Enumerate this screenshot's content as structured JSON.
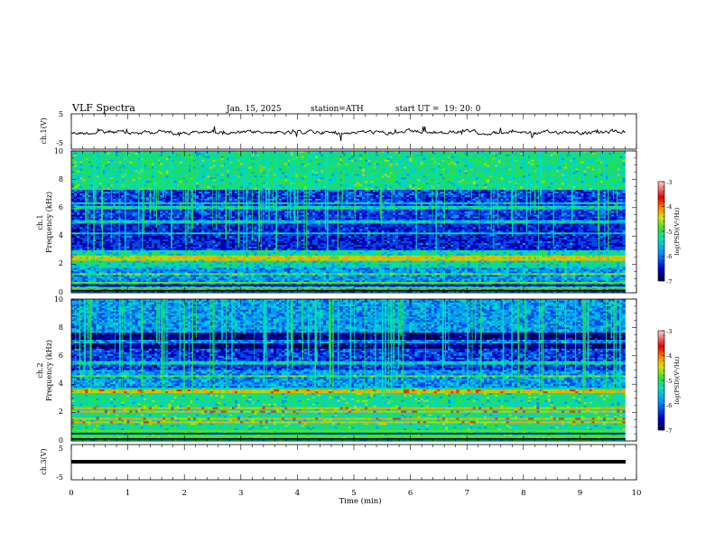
{
  "header": {
    "title": "VLF  Spectra",
    "date": "Jan. 15, 2025",
    "station": "station=ATH",
    "start_label": "start  UT  =",
    "start_value": "19: 20: 0"
  },
  "chart_data": [
    {
      "type": "line",
      "panel": "ch.1 waveform",
      "ylabel": "ch.1(V)",
      "ylim": [
        -5,
        5
      ],
      "y_ticks": [
        "5",
        "-5"
      ],
      "xlim": [
        0,
        10
      ],
      "description_level_volts": 0,
      "color": "#000000"
    },
    {
      "type": "heatmap",
      "panel": "ch.1 spectrogram",
      "ylabel_line1": "ch.1",
      "ylabel_line2": "Frequency  (kHz)",
      "ylim": [
        0,
        10
      ],
      "y_ticks": [
        "10",
        "8",
        "6",
        "4",
        "2",
        "0"
      ],
      "xlim": [
        0,
        9.8
      ],
      "colorbar": {
        "label": "log(PSD)(V²/Hz)",
        "range": [
          -7,
          -3
        ],
        "ticks": [
          "-3",
          "-4",
          "-5",
          "-6",
          "-7"
        ]
      }
    },
    {
      "type": "heatmap",
      "panel": "ch.2 spectrogram",
      "ylabel_line1": "ch.2",
      "ylabel_line2": "Frequency  (kHz)",
      "ylim": [
        0,
        10
      ],
      "y_ticks": [
        "10",
        "8",
        "6",
        "4",
        "2",
        "0"
      ],
      "xlim": [
        0,
        9.8
      ],
      "colorbar": {
        "label": "log(PSD)(V²/Hz)",
        "range": [
          -7,
          -3
        ],
        "ticks": [
          "-3",
          "-4",
          "-5",
          "-6",
          "-7"
        ]
      }
    },
    {
      "type": "line",
      "panel": "ch.3 waveform",
      "ylabel": "ch.3(V)",
      "ylim": [
        -5,
        5
      ],
      "y_ticks": [
        "5",
        "-5"
      ],
      "xlim": [
        0,
        10
      ],
      "level_volts": 0,
      "color": "#000000"
    }
  ],
  "x_axis": {
    "label": "Time  (min)",
    "range": [
      0,
      10
    ],
    "ticks": [
      "0",
      "1",
      "2",
      "3",
      "4",
      "5",
      "6",
      "7",
      "8",
      "9",
      "10"
    ]
  }
}
